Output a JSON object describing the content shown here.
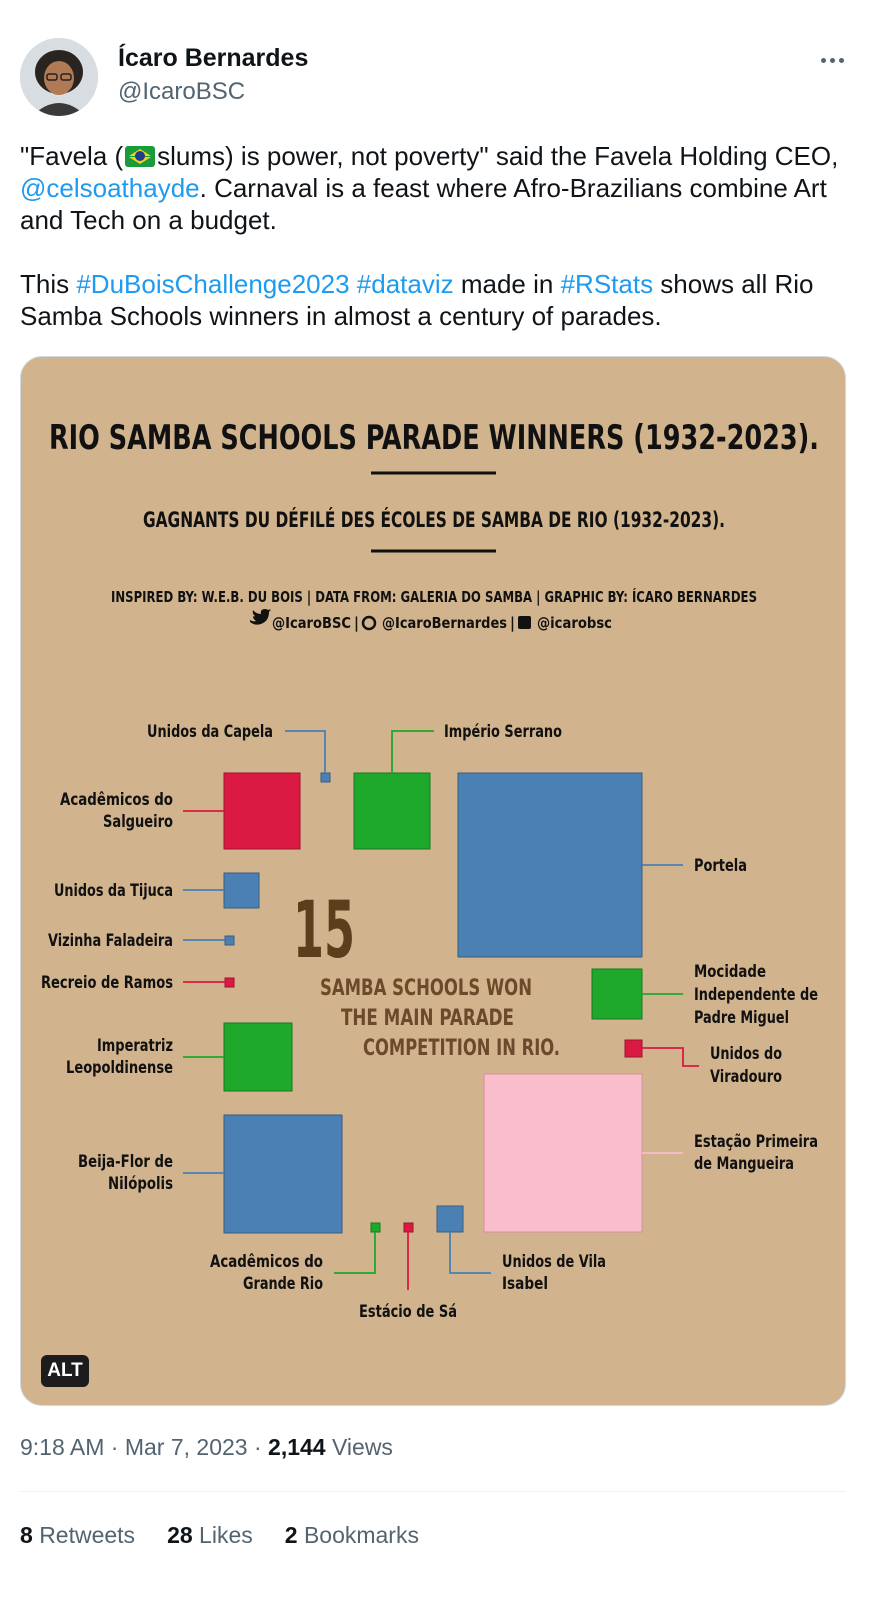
{
  "author": {
    "name": "Ícaro Bernardes",
    "handle": "@IcaroBSC"
  },
  "tweet": {
    "p1_a": "\"Favela (",
    "p1_b": "slums) is power, not poverty\" said the Favela Holding CEO, ",
    "mention": "@celsoathayde",
    "p1_c": ". Carnaval is a feast where Afro-Brazilians combine Art and Tech on a budget.",
    "p2_a": "This ",
    "tag1": "#DuBoisChallenge2023",
    "tag2": "#dataviz",
    "p2_b": " made in ",
    "tag3": "#RStats",
    "p2_c": " shows all Rio Samba Schools winners in almost a century of parades."
  },
  "infographic": {
    "title": "RIO SAMBA SCHOOLS PARADE WINNERS (1932-2023).",
    "subtitle": "GAGNANTS DU DÉFILÉ DES ÉCOLES DE SAMBA DE RIO (1932-2023).",
    "credits": "INSPIRED BY: W.E.B. DU BOIS | DATA FROM: GALERIA DO SAMBA | GRAPHIC BY: ÍCARO BERNARDES",
    "socials": [
      "@IcaroBSC",
      "@IcaroBernardes",
      "@icarobsc"
    ],
    "big_number": "15",
    "center_text": [
      "SAMBA SCHOOLS WON",
      "THE MAIN PARADE",
      "COMPETITION IN RIO."
    ],
    "alt_label": "ALT",
    "colors": {
      "background": "#d1b38e",
      "blue": "#4a80b3",
      "green": "#1ea82c",
      "red": "#da1a42",
      "pink": "#f9bdcb",
      "ink": "#111111",
      "brown": "#5d3e1c"
    }
  },
  "chart_data": {
    "type": "other",
    "description_free": true,
    "schools": [
      {
        "name": "Portela",
        "color": "blue"
      },
      {
        "name": "Estação Primeira de Mangueira",
        "color": "pink"
      },
      {
        "name": "Beija-Flor de Nilópolis",
        "color": "blue"
      },
      {
        "name": "Império Serrano",
        "color": "green"
      },
      {
        "name": "Acadêmicos do Salgueiro",
        "color": "red"
      },
      {
        "name": "Imperatriz Leopoldinense",
        "color": "green"
      },
      {
        "name": "Mocidade Independente de Padre Miguel",
        "color": "green"
      },
      {
        "name": "Unidos da Tijuca",
        "color": "blue"
      },
      {
        "name": "Unidos de Vila Isabel",
        "color": "blue"
      },
      {
        "name": "Unidos do Viradouro",
        "color": "red"
      },
      {
        "name": "Vizinha Faladeira",
        "color": "blue"
      },
      {
        "name": "Recreio de Ramos",
        "color": "red"
      },
      {
        "name": "Unidos da Capela",
        "color": "blue"
      },
      {
        "name": "Acadêmicos do Grande Rio",
        "color": "green"
      },
      {
        "name": "Estácio de Sá",
        "color": "red"
      }
    ]
  },
  "meta": {
    "time": "9:18 AM",
    "sep": "·",
    "date": "Mar 7, 2023",
    "views_count": "2,144",
    "views_label": "Views"
  },
  "stats": {
    "retweets_count": "8",
    "retweets_label": "Retweets",
    "likes_count": "28",
    "likes_label": "Likes",
    "bookmarks_count": "2",
    "bookmarks_label": "Bookmarks"
  }
}
